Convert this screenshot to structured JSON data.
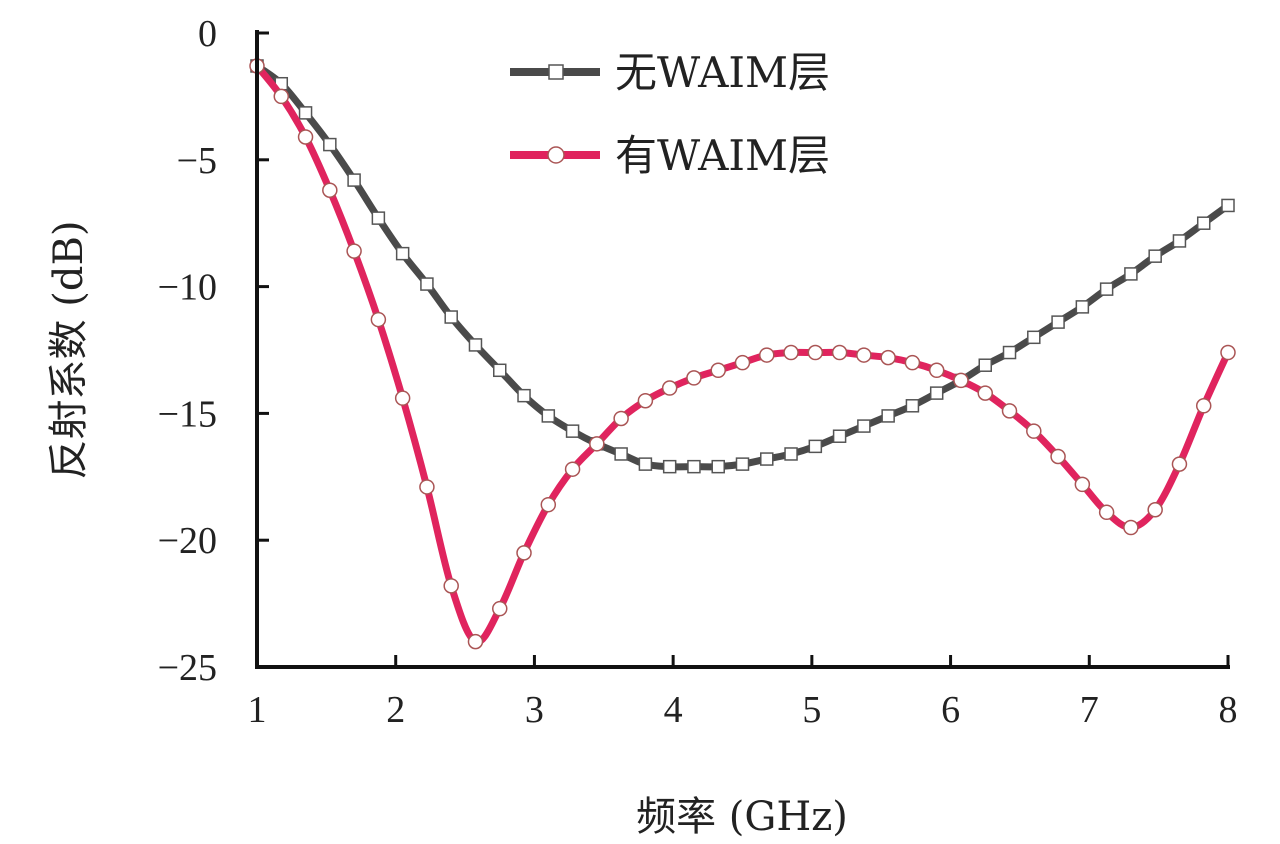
{
  "chart_data": {
    "type": "line",
    "title": "",
    "xlabel": "频率 (GHz)",
    "ylabel": "反射系数 (dB)",
    "xlim": [
      1,
      8
    ],
    "ylim": [
      -25,
      0
    ],
    "xticks": [
      "1",
      "2",
      "3",
      "4",
      "5",
      "6",
      "7",
      "8"
    ],
    "yticks": [
      "0",
      "−5",
      "−10",
      "−15",
      "−20",
      "−25"
    ],
    "xtick_values": [
      1,
      2,
      3,
      4,
      5,
      6,
      7,
      8
    ],
    "ytick_values": [
      0,
      -5,
      -10,
      -15,
      -20,
      -25
    ],
    "grid": false,
    "legend_position": "top-center",
    "x": [
      1.0,
      1.175,
      1.35,
      1.525,
      1.7,
      1.875,
      2.05,
      2.225,
      2.4,
      2.575,
      2.75,
      2.925,
      3.1,
      3.275,
      3.45,
      3.625,
      3.8,
      3.975,
      4.15,
      4.325,
      4.5,
      4.675,
      4.85,
      5.025,
      5.2,
      5.375,
      5.55,
      5.725,
      5.9,
      6.075,
      6.25,
      6.425,
      6.6,
      6.775,
      6.95,
      7.125,
      7.3,
      7.475,
      7.65,
      7.825,
      8.0
    ],
    "series": [
      {
        "name": "无WAIM层",
        "color": "#4a4a4a",
        "marker": "square",
        "values": [
          -1.3,
          -2.0,
          -3.15,
          -4.4,
          -5.8,
          -7.3,
          -8.7,
          -9.9,
          -11.2,
          -12.3,
          -13.3,
          -14.3,
          -15.1,
          -15.7,
          -16.2,
          -16.6,
          -17.0,
          -17.1,
          -17.1,
          -17.1,
          -17.0,
          -16.8,
          -16.6,
          -16.3,
          -15.9,
          -15.5,
          -15.1,
          -14.7,
          -14.2,
          -13.7,
          -13.1,
          -12.6,
          -12.0,
          -11.4,
          -10.8,
          -10.1,
          -9.5,
          -8.8,
          -8.2,
          -7.5,
          -6.8
        ]
      },
      {
        "name": "有WAIM层",
        "color": "#e0245e",
        "marker": "circle",
        "values": [
          -1.3,
          -2.5,
          -4.1,
          -6.2,
          -8.6,
          -11.3,
          -14.4,
          -17.9,
          -21.8,
          -24.0,
          -22.7,
          -20.5,
          -18.6,
          -17.2,
          -16.2,
          -15.2,
          -14.5,
          -14.0,
          -13.6,
          -13.3,
          -13.0,
          -12.7,
          -12.6,
          -12.6,
          -12.6,
          -12.7,
          -12.8,
          -13.0,
          -13.3,
          -13.7,
          -14.2,
          -14.9,
          -15.7,
          -16.7,
          -17.8,
          -18.9,
          -19.5,
          -18.8,
          -17.0,
          -14.7,
          -12.6
        ]
      }
    ]
  }
}
